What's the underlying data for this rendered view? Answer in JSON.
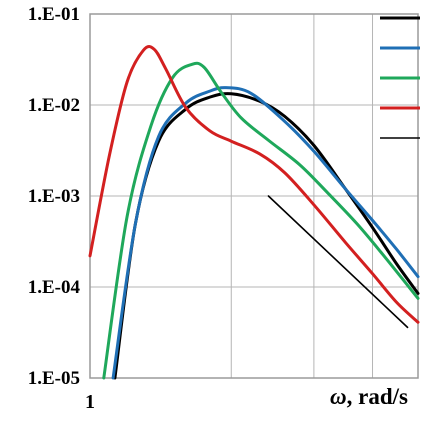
{
  "chart_data": {
    "type": "line",
    "title": "",
    "xlabel": "ω, rad/s",
    "xlabel_symbol": "ω",
    "xlabel_rest": ", rad/s",
    "ylabel": "",
    "x_scale": "log",
    "y_scale": "log",
    "xlim": [
      1,
      5
    ],
    "ylim": [
      1e-05,
      0.1
    ],
    "x_tick_labels": [
      {
        "value": 1,
        "label": "1"
      }
    ],
    "y_tick_labels": [
      {
        "value": 0.1,
        "label": "1.E-01"
      },
      {
        "value": 0.01,
        "label": "1.E-02"
      },
      {
        "value": 0.001,
        "label": "1.E-03"
      },
      {
        "value": 0.0001,
        "label": "1.E-04"
      },
      {
        "value": 1e-05,
        "label": "1.E-05"
      }
    ],
    "x_gridlines": [
      1,
      2,
      3,
      4,
      5
    ],
    "grid": true,
    "legend": {
      "placement": "top-right",
      "entries_have_text": false
    },
    "series": [
      {
        "color": "#000000",
        "width": 3,
        "points": [
          [
            1.13,
            1e-05
          ],
          [
            1.25,
            0.0005
          ],
          [
            1.4,
            0.004
          ],
          [
            1.6,
            0.009
          ],
          [
            1.8,
            0.0122
          ],
          [
            2.0,
            0.0133
          ],
          [
            2.3,
            0.011
          ],
          [
            2.6,
            0.0075
          ],
          [
            3.0,
            0.0036
          ],
          [
            3.5,
            0.0012
          ],
          [
            4.0,
            0.00045
          ],
          [
            4.5,
            0.00018
          ],
          [
            5.0,
            8.5e-05
          ]
        ]
      },
      {
        "color": "#1f6fb5",
        "width": 3,
        "points": [
          [
            1.12,
            1e-05
          ],
          [
            1.25,
            0.0005
          ],
          [
            1.4,
            0.0045
          ],
          [
            1.6,
            0.0105
          ],
          [
            1.8,
            0.0142
          ],
          [
            1.95,
            0.0155
          ],
          [
            2.2,
            0.0135
          ],
          [
            2.6,
            0.0066
          ],
          [
            3.0,
            0.0031
          ],
          [
            3.5,
            0.0012
          ],
          [
            4.0,
            0.00054
          ],
          [
            4.5,
            0.00026
          ],
          [
            5.0,
            0.00013
          ]
        ]
      },
      {
        "color": "#1fa85b",
        "width": 3,
        "points": [
          [
            1.07,
            1e-05
          ],
          [
            1.2,
            0.0006
          ],
          [
            1.35,
            0.006
          ],
          [
            1.5,
            0.02
          ],
          [
            1.65,
            0.028
          ],
          [
            1.75,
            0.026
          ],
          [
            1.9,
            0.014
          ],
          [
            2.1,
            0.0072
          ],
          [
            2.4,
            0.0041
          ],
          [
            2.8,
            0.0022
          ],
          [
            3.2,
            0.0011
          ],
          [
            3.7,
            0.0005
          ],
          [
            4.2,
            0.00023
          ],
          [
            5.0,
            7.5e-05
          ]
        ]
      },
      {
        "color": "#d32020",
        "width": 3,
        "points": [
          [
            1.0,
            0.00022
          ],
          [
            1.1,
            0.0028
          ],
          [
            1.2,
            0.018
          ],
          [
            1.3,
            0.04
          ],
          [
            1.37,
            0.041
          ],
          [
            1.45,
            0.025
          ],
          [
            1.6,
            0.0094
          ],
          [
            1.8,
            0.0052
          ],
          [
            2.0,
            0.004
          ],
          [
            2.3,
            0.0029
          ],
          [
            2.6,
            0.0018
          ],
          [
            3.0,
            0.0008
          ],
          [
            3.5,
            0.00031
          ],
          [
            4.0,
            0.00014
          ],
          [
            4.5,
            6.8e-05
          ],
          [
            5.0,
            4.1e-05
          ]
        ]
      },
      {
        "color": "#000000",
        "width": 1.6,
        "points": [
          [
            2.4,
            0.001
          ],
          [
            4.75,
            3.6e-05
          ]
        ]
      }
    ]
  }
}
